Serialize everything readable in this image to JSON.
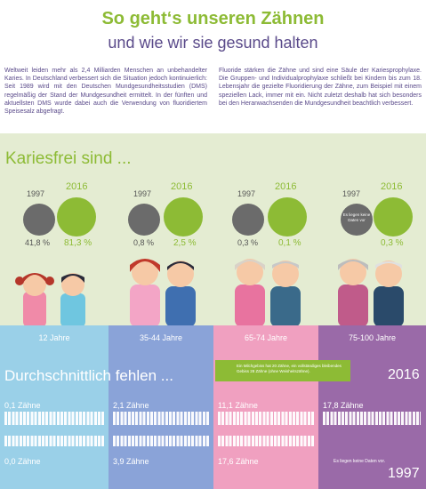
{
  "header": {
    "title": "So geht‘s unseren Zähnen",
    "subtitle": "und wie wir sie gesund halten"
  },
  "intro": {
    "left": "Weltweit leiden mehr als 2,4 Milliarden Menschen an unbehandelter Karies. In Deutschland verbessert sich die Situation jedoch kontinuierlich: Seit 1989 wird mit den Deutschen Mundgesundheitsstudien (DMS) regelmäßig der Stand der Mundgesundheit ermittelt. In der fünften und aktuellsten DMS wurde dabei auch die Verwendung von fluoridiertem Speisesalz abgefragt.",
    "right": "Fluoride stärken die Zähne und sind eine Säule der Kariesprophylaxe. Die Gruppen- und Individualprophylaxe schließt bei Kindern bis zum 18. Lebensjahr die gezielte Fluoridierung der Zähne, zum Beispiel mit einem speziellen Lack, immer mit ein. Nicht zuletzt deshalb hat sich besonders bei den Heranwachsenden die Mundgesundheit beachtlich verbessert."
  },
  "kariesfrei": {
    "title": "Kariesfrei sind ...",
    "year_old": "1997",
    "year_new": "2016",
    "groups": [
      {
        "old": "41,8 %",
        "new": "81,3 %"
      },
      {
        "old": "0,8 %",
        "new": "2,5 %"
      },
      {
        "old": "0,3 %",
        "new": "0,1 %"
      },
      {
        "old": "Es liegen keine Daten vor",
        "new": "0,3 %"
      }
    ]
  },
  "age_groups": [
    "12 Jahre",
    "35-44 Jahre",
    "65-74 Jahre",
    "75-100 Jahre"
  ],
  "fehlen": {
    "title": "Durchschnittlich fehlen ...",
    "note": "Ein Milchgebiss hat 20 Zähne, ein vollständiges bleibendes Gebiss 28 Zähne (ohne Weisheitszähne).",
    "year_new": "2016",
    "year_old": "1997",
    "values_2016": [
      "0,1 Zähne",
      "2,1 Zähne",
      "11,1 Zähne",
      "17,8 Zähne"
    ],
    "values_1997": [
      "0,0 Zähne",
      "3,9 Zähne",
      "17,6 Zähne",
      "Es liegen keine Daten vor."
    ]
  },
  "colors": {
    "green": "#8dbb35",
    "purple": "#5a4a8a",
    "band_12": "#9ad0e8",
    "band_35": "#8aa3d8",
    "band_65": "#f0a0c0",
    "band_75": "#9a6aa8"
  }
}
